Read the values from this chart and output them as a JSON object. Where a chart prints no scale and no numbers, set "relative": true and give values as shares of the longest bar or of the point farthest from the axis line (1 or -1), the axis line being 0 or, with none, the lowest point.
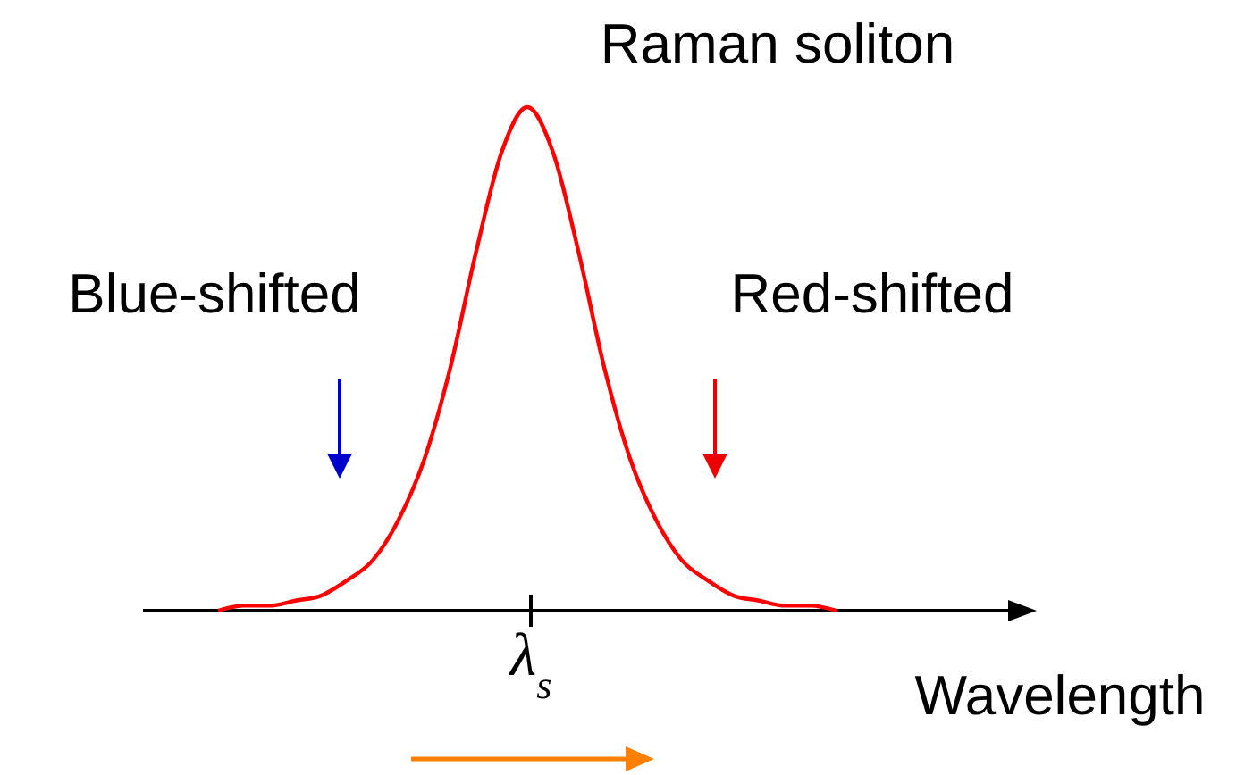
{
  "chart_data": {
    "type": "line",
    "relative": true,
    "xlabel": "Wavelength",
    "annotations": [
      "Raman soliton",
      "Blue-shifted",
      "Red-shifted",
      "λ$_{s}$"
    ],
    "categories": [
      null,
      null,
      null,
      null,
      null,
      null,
      null,
      null,
      null,
      null,
      null,
      null,
      null,
      null,
      null,
      null,
      null,
      null,
      null,
      null,
      null,
      null,
      null,
      null,
      null
    ],
    "series": [
      {
        "color": "#ff0000",
        "values": [
          0,
          0.01,
          0.01,
          0.02,
          0.03,
          0.06,
          0.1,
          0.18,
          0.3,
          0.48,
          0.71,
          0.91,
          1,
          0.91,
          0.71,
          0.48,
          0.3,
          0.18,
          0.1,
          0.06,
          0.03,
          0.02,
          0.01,
          0.01,
          0
        ]
      }
    ],
    "marker": "none",
    "line_style": "solid"
  }
}
